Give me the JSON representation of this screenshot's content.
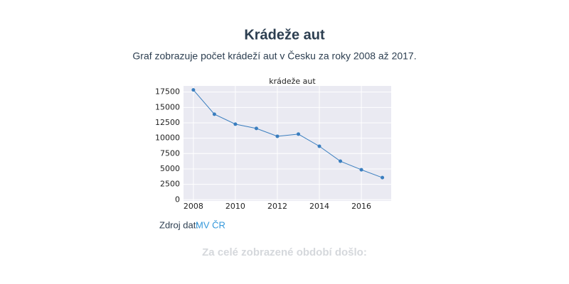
{
  "header": {
    "title": "Krádeže aut",
    "description": "Graf zobrazuje počet krádeží aut v Česku za roky 2008 až 2017."
  },
  "chart_data": {
    "type": "line",
    "title": "krádeže aut",
    "x": [
      2008,
      2009,
      2010,
      2011,
      2012,
      2013,
      2014,
      2015,
      2016,
      2017
    ],
    "series": [
      {
        "name": "krádeže aut",
        "color": "#3a7ebf",
        "values": [
          17850,
          13900,
          12280,
          11590,
          10310,
          10660,
          8690,
          6260,
          4870,
          3590
        ]
      }
    ],
    "xlim": [
      2007.53,
      2017.42
    ],
    "xticks": [
      2008,
      2010,
      2012,
      2014,
      2016
    ],
    "ylim": [
      -200,
      18500
    ],
    "yticks": [
      0,
      2500,
      5000,
      7500,
      10000,
      12500,
      15000,
      17500
    ],
    "grid": true,
    "background": "#eaeaf2"
  },
  "source": {
    "label": "Zdroj dat:",
    "link": "MV ČR"
  },
  "footer": {
    "text": "Za celé zobrazené období došlo:"
  }
}
